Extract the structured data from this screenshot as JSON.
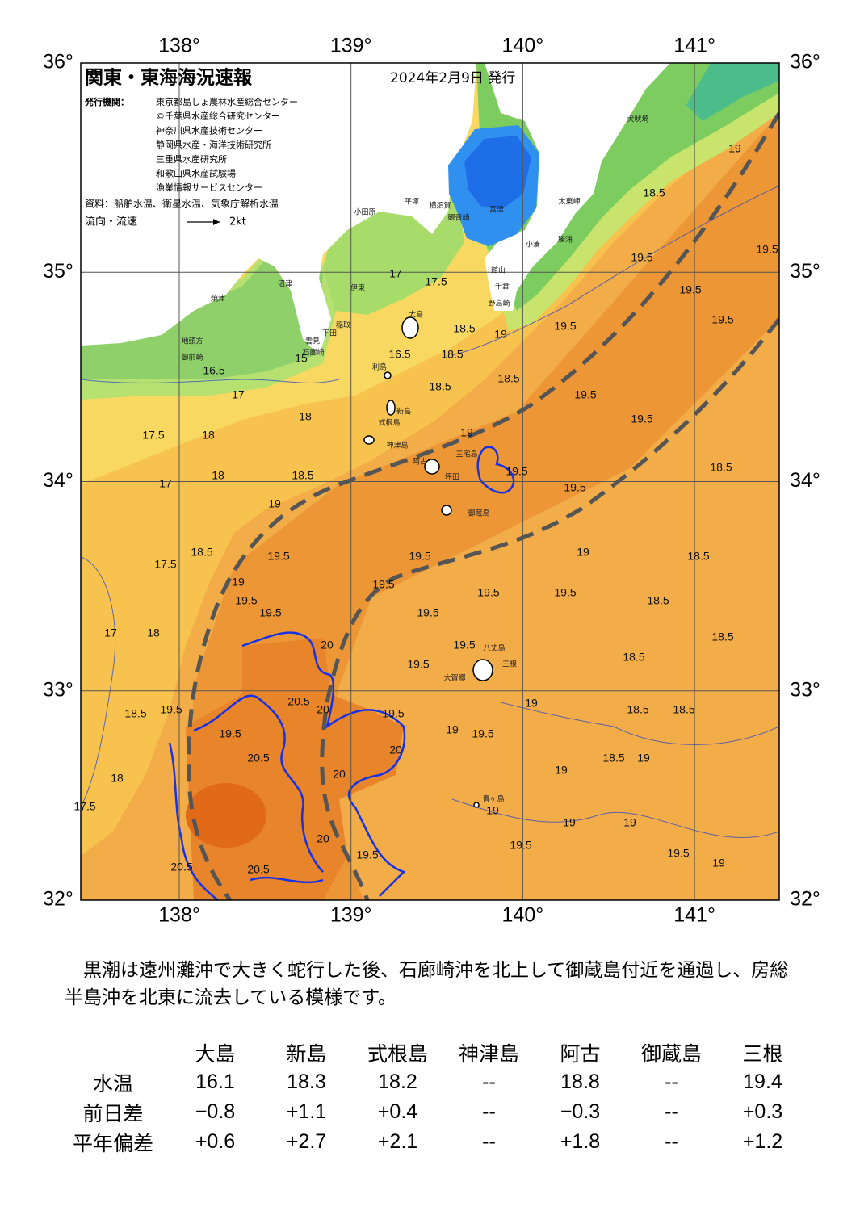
{
  "header": {
    "title": "関東・東海海況速報",
    "date": "2024年2月9日 発行",
    "issuer_label": "発行機関：",
    "issuers": [
      "東京都島しょ農林水産総合センター",
      "©千葉県水産総合研究センター",
      "神奈川県水産技術センター",
      "静岡県水産・海洋技術研究所",
      "三重県水産研究所",
      "和歌山県水産試験場",
      "漁業情報サービスセンター"
    ],
    "source": "資料：船舶水温、衛星水温、気象庁解析水温",
    "legend_label": "流向・流速",
    "legend_speed": "2kt"
  },
  "map": {
    "lon_ticks": [
      {
        "value": 138,
        "label": "138°"
      },
      {
        "value": 139,
        "label": "139°"
      },
      {
        "value": 140,
        "label": "140°"
      },
      {
        "value": 141,
        "label": "141°"
      }
    ],
    "lat_ticks": [
      {
        "value": 36,
        "label": "36°"
      },
      {
        "value": 35,
        "label": "35°"
      },
      {
        "value": 34,
        "label": "34°"
      },
      {
        "value": 33,
        "label": "33°"
      },
      {
        "value": 32,
        "label": "32°"
      }
    ],
    "contour_labels": [
      "19.5",
      "19.5",
      "19.5",
      "19.5",
      "19",
      "18.5",
      "19.5",
      "19.5",
      "19.5",
      "18.5",
      "18.5",
      "18.5",
      "18.5",
      "18.5",
      "18.5",
      "18.5",
      "18.5",
      "19",
      "19",
      "19",
      "19",
      "19.5",
      "19",
      "19.5",
      "19",
      "19",
      "19",
      "19.5",
      "19.5",
      "19.5",
      "19.5",
      "19.5",
      "19.5",
      "19",
      "19.5",
      "19.5",
      "18.5",
      "19",
      "18.5",
      "18.5",
      "18.5",
      "19",
      "19.5",
      "19.5",
      "19.5",
      "19",
      "19.5",
      "19",
      "19.5",
      "18.5",
      "17.5",
      "18",
      "17",
      "18.5",
      "19.5",
      "18",
      "17.5",
      "18",
      "18.5",
      "18",
      "18",
      "17.5",
      "17",
      "17",
      "16.5",
      "17.5",
      "17",
      "15",
      "16.5",
      "20.5",
      "20.5",
      "20.5",
      "20.5",
      "20",
      "20",
      "20",
      "19.5",
      "19.5",
      "20",
      "20",
      "19.5"
    ],
    "places": [
      "大島",
      "利島",
      "新島",
      "式根島",
      "神津島",
      "三宅島",
      "阿古",
      "坪田",
      "御蔵島",
      "八丈島",
      "三根",
      "大賀郷",
      "青ヶ島",
      "犬吠埼",
      "太東岬",
      "勝浦",
      "小湊",
      "野島崎",
      "千倉",
      "館山",
      "富津",
      "観音崎",
      "横須賀",
      "平塚",
      "小田原",
      "沼津",
      "伊東",
      "焼津",
      "地頭方",
      "御前崎",
      "稲取",
      "下田",
      "雲見",
      "石廊崎"
    ]
  },
  "text": "黒潮は遠州灘沖で大きく蛇行した後、石廊崎沖を北上して御蔵島付近を通過し、房総半島沖を北東に流去している模様です。",
  "table": {
    "header": [
      "大島",
      "新島",
      "式根島",
      "神津島",
      "阿古",
      "御蔵島",
      "三根"
    ],
    "rows": [
      [
        "水温",
        "16.1",
        "18.3",
        "18.2",
        "--",
        "18.8",
        "--",
        "19.4"
      ],
      [
        "前日差",
        "−0.8",
        "+1.1",
        "+0.4",
        "--",
        "−0.3",
        "--",
        "+0.3"
      ],
      [
        "平年偏差",
        "+0.6",
        "+2.7",
        "+2.1",
        "--",
        "+1.8",
        "--",
        "+1.2"
      ]
    ]
  }
}
